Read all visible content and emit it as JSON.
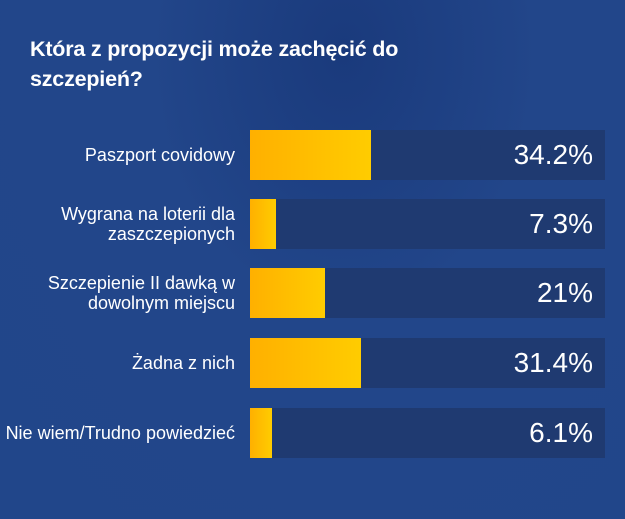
{
  "chart_data": {
    "type": "bar",
    "orientation": "horizontal",
    "title": "Która z propozycji może zachęcić do szczepień?",
    "categories": [
      "Paszport covidowy",
      "Wygrana na loterii dla zaszczepionych",
      "Szczepienie II dawką w dowolnym miejscu",
      "Żadna z nich",
      "Nie wiem/Trudno powiedzieć"
    ],
    "values": [
      34.2,
      7.3,
      21,
      31.4,
      6.1
    ],
    "value_labels": [
      "34.2%",
      "7.3%",
      "21%",
      "31.4%",
      "6.1%"
    ],
    "xlim": [
      0,
      100
    ],
    "grid": false,
    "colors": {
      "bar_start": "#ffb000",
      "bar_end": "#ffcc00",
      "track": "#1f3a71",
      "background": "#21468a"
    }
  }
}
